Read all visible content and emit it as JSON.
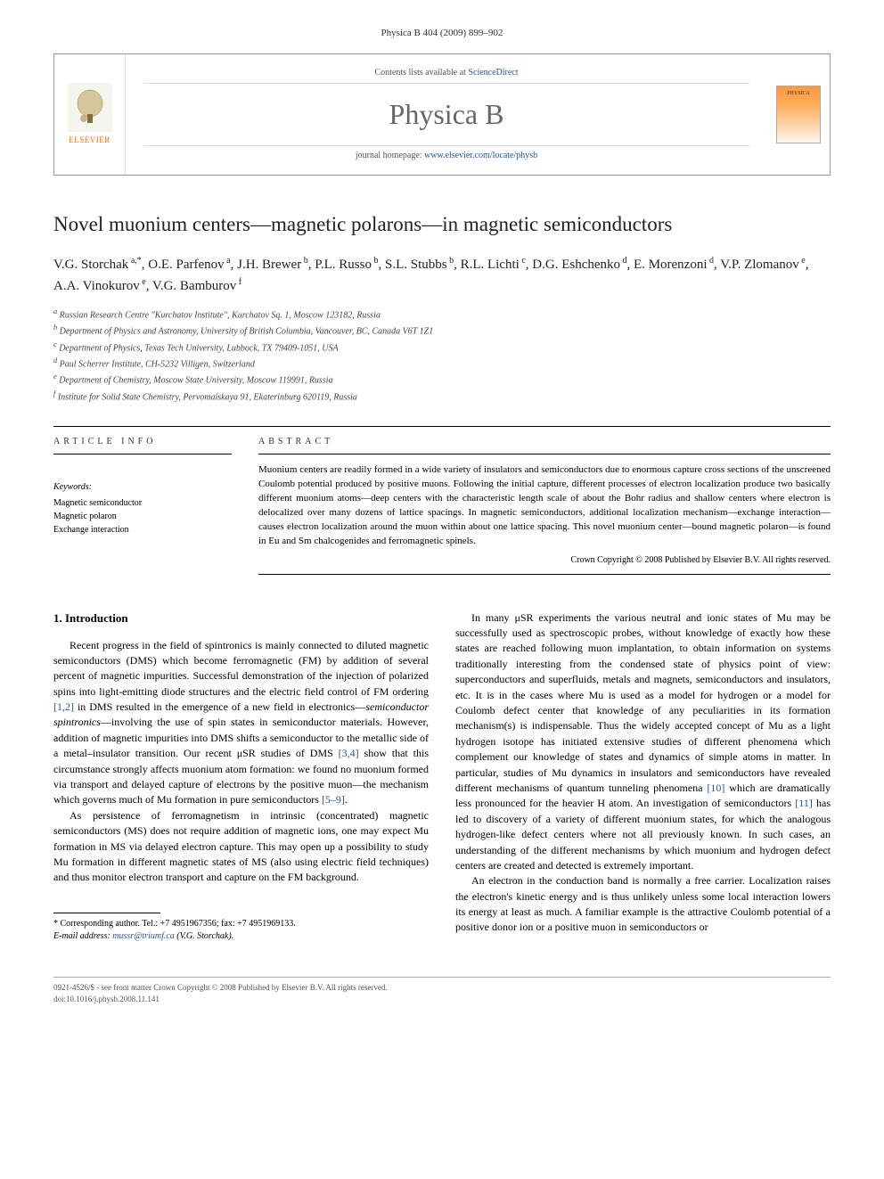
{
  "journal_ref": "Physica B 404 (2009) 899–902",
  "header": {
    "contents_prefix": "Contents lists available at ",
    "contents_link": "ScienceDirect",
    "journal_name": "Physica B",
    "homepage_prefix": "journal homepage: ",
    "homepage_link": "www.elsevier.com/locate/physb",
    "elsevier_label": "ELSEVIER",
    "cover_label": "PHYSICA"
  },
  "title": "Novel muonium centers—magnetic polarons—in magnetic semiconductors",
  "authors_html": "V.G. Storchak<sup> a,*</sup>, O.E. Parfenov<sup> a</sup>, J.H. Brewer<sup> b</sup>, P.L. Russo<sup> b</sup>, S.L. Stubbs<sup> b</sup>, R.L. Lichti<sup> c</sup>, D.G. Eshchenko<sup> d</sup>, E. Morenzoni<sup> d</sup>, V.P. Zlomanov<sup> e</sup>, A.A. Vinokurov<sup> e</sup>, V.G. Bamburov<sup> f</sup>",
  "affiliations": [
    "a Russian Research Centre \"Kurchatov Institute\", Kurchatov Sq. 1, Moscow 123182, Russia",
    "b Department of Physics and Astronomy, University of British Columbia, Vancouver, BC, Canada V6T 1Z1",
    "c Department of Physics, Texas Tech University, Lubbock, TX 79409-1051, USA",
    "d Paul Scherrer Institute, CH-5232 Villigen, Switzerland",
    "e Department of Chemistry, Moscow State University, Moscow 119991, Russia",
    "f Institute for Solid State Chemistry, Pervomaiskaya 91, Ekaterinburg 620119, Russia"
  ],
  "info_heading": "ARTICLE INFO",
  "keywords_label": "Keywords:",
  "keywords": [
    "Magnetic semiconductor",
    "Magnetic polaron",
    "Exchange interaction"
  ],
  "abstract_heading": "ABSTRACT",
  "abstract_text": "Muonium centers are readily formed in a wide variety of insulators and semiconductors due to enormous capture cross sections of the unscreened Coulomb potential produced by positive muons. Following the initial capture, different processes of electron localization produce two basically different muonium atoms—deep centers with the characteristic length scale of about the Bohr radius and shallow centers where electron is delocalized over many dozens of lattice spacings. In magnetic semiconductors, additional localization mechanism—exchange interaction—causes electron localization around the muon within about one lattice spacing. This novel muonium center—bound magnetic polaron—is found in Eu and Sm chalcogenides and ferromagnetic spinels.",
  "copyright": "Crown Copyright © 2008 Published by Elsevier B.V. All rights reserved.",
  "section1_heading": "1. Introduction",
  "left_col": {
    "p1": "Recent progress in the field of spintronics is mainly connected to diluted magnetic semiconductors (DMS) which become ferromagnetic (FM) by addition of several percent of magnetic impurities. Successful demonstration of the injection of polarized spins into light-emitting diode structures and the electric field control of FM ordering [1,2] in DMS resulted in the emergence of a new field in electronics—semiconductor spintronics—involving the use of spin states in semiconductor materials. However, addition of magnetic impurities into DMS shifts a semiconductor to the metallic side of a metal–insulator transition. Our recent μSR studies of DMS [3,4] show that this circumstance strongly affects muonium atom formation: we found no muonium formed via transport and delayed capture of electrons by the positive muon—the mechanism which governs much of Mu formation in pure semiconductors [5–9].",
    "p2": "As persistence of ferromagnetism in intrinsic (concentrated) magnetic semiconductors (MS) does not require addition of magnetic ions, one may expect Mu formation in MS via delayed electron capture. This may open up a possibility to study Mu formation in different magnetic states of MS (also using electric field techniques) and thus monitor electron transport and capture on the FM background."
  },
  "right_col": {
    "p1": "In many μSR experiments the various neutral and ionic states of Mu may be successfully used as spectroscopic probes, without knowledge of exactly how these states are reached following muon implantation, to obtain information on systems traditionally interesting from the condensed state of physics point of view: superconductors and superfluids, metals and magnets, semiconductors and insulators, etc. It is in the cases where Mu is used as a model for hydrogen or a model for Coulomb defect center that knowledge of any peculiarities in its formation mechanism(s) is indispensable. Thus the widely accepted concept of Mu as a light hydrogen isotope has initiated extensive studies of different phenomena which complement our knowledge of states and dynamics of simple atoms in matter. In particular, studies of Mu dynamics in insulators and semiconductors have revealed different mechanisms of quantum tunneling phenomena [10] which are dramatically less pronounced for the heavier H atom. An investigation of semiconductors [11] has led to discovery of a variety of different muonium states, for which the analogous hydrogen-like defect centers where not all previously known. In such cases, an understanding of the different mechanisms by which muonium and hydrogen defect centers are created and detected is extremely important.",
    "p2": "An electron in the conduction band is normally a free carrier. Localization raises the electron's kinetic energy and is thus unlikely unless some local interaction lowers its energy at least as much. A familiar example is the attractive Coulomb potential of a positive donor ion or a positive muon in semiconductors or"
  },
  "corresponding": "* Corresponding author. Tel.: +7 4951967356; fax: +7 4951969133.",
  "email_label": "E-mail address: ",
  "email_value": "mussr@triumf.ca",
  "email_author": " (V.G. Storchak).",
  "footer_issn": "0921-4526/$ - see front matter Crown Copyright © 2008 Published by Elsevier B.V. All rights reserved.",
  "footer_doi": "doi:10.1016/j.physb.2008.11.141",
  "colors": {
    "link": "#2255aa",
    "elsevier_orange": "#ff6600",
    "text": "#000000",
    "border": "#999999"
  }
}
